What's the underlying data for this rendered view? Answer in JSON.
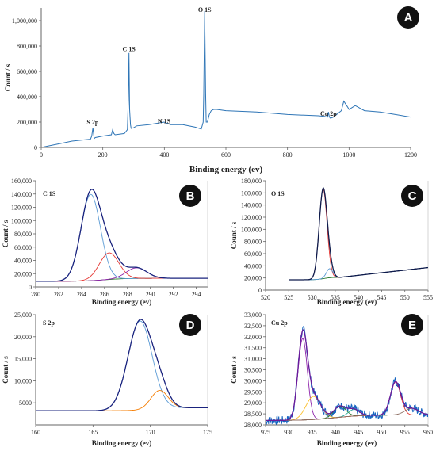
{
  "chart_data": [
    {
      "panel": "A",
      "type": "line",
      "xlabel": "Binding energy (ev)",
      "ylabel": "Count / s",
      "xlim": [
        0,
        1200
      ],
      "ylim": [
        0,
        1100000
      ],
      "xticks": [
        0,
        200,
        400,
        600,
        800,
        1000,
        1200
      ],
      "yticks": [
        0,
        200000,
        400000,
        600000,
        800000,
        1000000
      ],
      "ytick_labels": [
        "0",
        "200,000",
        "400,000",
        "600,000",
        "800,000",
        "1,000,000"
      ],
      "grid": false,
      "annotations": [
        {
          "text": "S 2p",
          "x": 167,
          "y": 180000
        },
        {
          "text": "C 1S",
          "x": 285,
          "y": 760000
        },
        {
          "text": "N 1S",
          "x": 399,
          "y": 190000
        },
        {
          "text": "O 1S",
          "x": 531,
          "y": 1070000
        },
        {
          "text": "Cu 2p",
          "x": 933,
          "y": 250000
        }
      ],
      "series": [
        {
          "x": [
            0,
            20,
            60,
            100,
            140,
            160,
            164,
            168,
            172,
            176,
            200,
            228,
            232,
            236,
            240,
            270,
            280,
            283,
            285,
            287,
            290,
            292,
            300,
            310,
            350,
            399,
            420,
            460,
            500,
            520,
            526,
            528,
            531,
            534,
            536,
            540,
            546,
            552,
            560,
            570,
            600,
            700,
            800,
            900,
            920,
            930,
            933,
            936,
            940,
            950,
            965,
            975,
            983,
            995,
            1000,
            1020,
            1050,
            1100,
            1150,
            1200
          ],
          "y": [
            0,
            10000,
            30000,
            50000,
            60000,
            65000,
            90000,
            155000,
            70000,
            78000,
            90000,
            100000,
            140000,
            110000,
            100000,
            110000,
            140000,
            380000,
            745000,
            300000,
            180000,
            150000,
            155000,
            170000,
            180000,
            200000,
            180000,
            180000,
            160000,
            145000,
            200000,
            420000,
            1075000,
            430000,
            200000,
            200000,
            260000,
            290000,
            300000,
            300000,
            290000,
            280000,
            260000,
            250000,
            245000,
            240000,
            280000,
            240000,
            230000,
            240000,
            270000,
            290000,
            365000,
            320000,
            300000,
            330000,
            290000,
            280000,
            260000,
            240000
          ]
        }
      ]
    },
    {
      "panel": "B",
      "type": "line",
      "title": "C 1S",
      "xlabel": "Binding energy (ev)",
      "ylabel": "Count / s",
      "xlim": [
        280,
        295
      ],
      "ylim": [
        0,
        160000
      ],
      "xticks": [
        280,
        282,
        284,
        286,
        288,
        290,
        292,
        294
      ],
      "yticks": [
        0,
        20000,
        40000,
        60000,
        80000,
        100000,
        120000,
        140000,
        160000
      ],
      "ytick_labels": [
        "0",
        "20,000",
        "40,000",
        "60,000",
        "80,000",
        "100,000",
        "120,000",
        "140,000",
        "160,000"
      ],
      "grid": false,
      "components": [
        {
          "type": "envelope",
          "color": "#1a237e"
        },
        {
          "center": 284.8,
          "height": 130000,
          "width": 0.85,
          "color": "#5b9bd5"
        },
        {
          "center": 286.4,
          "height": 40000,
          "width": 0.85,
          "color": "#e53935"
        },
        {
          "center": 288.8,
          "height": 16000,
          "width": 0.9,
          "color": "#8e24aa"
        },
        {
          "type": "background",
          "color": "#2e7d32"
        }
      ]
    },
    {
      "panel": "C",
      "type": "line",
      "title": "O 1S",
      "xlabel": "Binding energy  (ev)",
      "ylabel": "Count / s",
      "xlim": [
        520,
        555
      ],
      "ylim": [
        0,
        180000
      ],
      "xticks": [
        520,
        525,
        530,
        535,
        540,
        545,
        550,
        555
      ],
      "yticks": [
        0,
        20000,
        40000,
        60000,
        80000,
        100000,
        120000,
        140000,
        160000,
        180000
      ],
      "ytick_labels": [
        "0",
        "20,000",
        "40,000",
        "60,000",
        "80,000",
        "100,000",
        "120,000",
        "140,000",
        "160,000",
        "180,000"
      ],
      "grid": false,
      "components": [
        {
          "type": "envelope",
          "color": "#0d1b4c"
        },
        {
          "center": 532.4,
          "height": 147000,
          "width": 0.85,
          "color": "#e53935"
        },
        {
          "center": 533.8,
          "height": 15000,
          "width": 0.7,
          "color": "#5b9bd5"
        },
        {
          "type": "background",
          "color": "#2e7d32"
        }
      ]
    },
    {
      "panel": "D",
      "type": "line",
      "title": "S 2p",
      "xlabel": "Binding energy (ev)",
      "ylabel": "Count / s",
      "xlim": [
        160,
        175
      ],
      "ylim": [
        0,
        25000
      ],
      "xticks": [
        160,
        165,
        170,
        175
      ],
      "yticks": [
        5000,
        10000,
        15000,
        20000,
        25000
      ],
      "ytick_labels": [
        "5000",
        "10,000",
        "15,000",
        "20,000",
        "25,000"
      ],
      "grid": false,
      "components": [
        {
          "type": "envelope",
          "color": "#1a237e"
        },
        {
          "center": 169.1,
          "height": 20200,
          "width": 1.05,
          "color": "#5b9bd5"
        },
        {
          "center": 170.8,
          "height": 4100,
          "width": 0.75,
          "color": "#f57c00"
        }
      ]
    },
    {
      "panel": "E",
      "type": "line",
      "title": "Cu 2p",
      "xlabel": "Binding energy (ev)",
      "ylabel": "Count / s",
      "xlim": [
        925,
        960
      ],
      "ylim": [
        28000,
        33000
      ],
      "xticks": [
        925,
        930,
        935,
        940,
        945,
        950,
        955,
        960
      ],
      "yticks": [
        28000,
        28500,
        29000,
        29500,
        30000,
        30500,
        31000,
        31500,
        32000,
        32500,
        33000
      ],
      "ytick_labels": [
        "28,000",
        "28,500",
        "29,000",
        "29,500",
        "30,000",
        "30,500",
        "31,000",
        "31,500",
        "32,000",
        "32,500",
        "33,000"
      ],
      "grid": false,
      "components": [
        {
          "type": "raw",
          "color": "#1565c0"
        },
        {
          "type": "envelope",
          "color": "#6a1b9a"
        },
        {
          "center": 933.0,
          "height": 3700,
          "width": 1.0,
          "color": "#8e24aa"
        },
        {
          "center": 935.3,
          "height": 1050,
          "width": 1.6,
          "color": "#fbc02d"
        },
        {
          "center": 941.0,
          "height": 500,
          "width": 1.3,
          "color": "#2e7d32"
        },
        {
          "center": 944.0,
          "height": 300,
          "width": 1.2,
          "color": "#26a69a"
        },
        {
          "center": 953.0,
          "height": 1500,
          "width": 1.1,
          "color": "#e53935"
        },
        {
          "center": 956.5,
          "height": 300,
          "width": 1.5,
          "color": "#8d6e63"
        }
      ]
    }
  ]
}
